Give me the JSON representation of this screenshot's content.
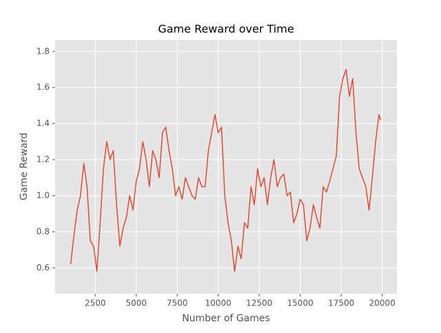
{
  "chart_data": {
    "type": "line",
    "title": "Game Reward over Time",
    "xlabel": "Number of Games",
    "ylabel": "Game Reward",
    "x": [
      1000,
      1200,
      1400,
      1600,
      1800,
      2000,
      2200,
      2400,
      2600,
      2800,
      3000,
      3200,
      3400,
      3600,
      3800,
      4000,
      4200,
      4400,
      4600,
      4800,
      5000,
      5200,
      5400,
      5600,
      5800,
      6000,
      6200,
      6400,
      6600,
      6800,
      7000,
      7200,
      7400,
      7600,
      7800,
      8000,
      8200,
      8400,
      8600,
      8800,
      9000,
      9200,
      9400,
      9600,
      9800,
      10000,
      10200,
      10400,
      10600,
      10800,
      11000,
      11200,
      11400,
      11600,
      11800,
      12000,
      12200,
      12400,
      12600,
      12800,
      13000,
      13200,
      13400,
      13600,
      13800,
      14000,
      14200,
      14400,
      14600,
      14800,
      15000,
      15200,
      15400,
      15600,
      15800,
      16000,
      16200,
      16400,
      16600,
      16800,
      17000,
      17200,
      17400,
      17600,
      17800,
      18000,
      18200,
      18400,
      18600,
      18800,
      19000,
      19200,
      19400,
      19600,
      19800,
      19900
    ],
    "series": [
      {
        "name": "Game Reward",
        "color": "#E24A33",
        "values": [
          0.62,
          0.78,
          0.92,
          1.0,
          1.18,
          1.05,
          0.75,
          0.72,
          0.58,
          0.85,
          1.15,
          1.3,
          1.2,
          1.25,
          0.95,
          0.72,
          0.82,
          0.88,
          1.0,
          0.92,
          1.08,
          1.15,
          1.3,
          1.2,
          1.05,
          1.25,
          1.2,
          1.1,
          1.35,
          1.38,
          1.25,
          1.15,
          1.0,
          1.05,
          0.98,
          1.1,
          1.05,
          1.0,
          0.98,
          1.1,
          1.05,
          1.05,
          1.25,
          1.35,
          1.45,
          1.35,
          1.38,
          1.0,
          0.85,
          0.75,
          0.58,
          0.72,
          0.65,
          0.85,
          0.82,
          1.05,
          0.95,
          1.15,
          1.05,
          1.1,
          0.95,
          1.1,
          1.2,
          1.05,
          1.1,
          1.12,
          1.0,
          1.02,
          0.85,
          0.9,
          0.98,
          0.95,
          0.75,
          0.82,
          0.95,
          0.88,
          0.82,
          1.05,
          1.02,
          1.08,
          1.15,
          1.22,
          1.55,
          1.65,
          1.7,
          1.55,
          1.65,
          1.35,
          1.15,
          1.1,
          1.05,
          0.92,
          1.1,
          1.3,
          1.45,
          1.42
        ]
      }
    ],
    "xlim": [
      53,
      20897
    ],
    "ylim": [
      0.456,
      1.864
    ],
    "xticks": [
      2500,
      5000,
      7500,
      10000,
      12500,
      15000,
      17500,
      20000
    ],
    "yticks": [
      0.6,
      0.8,
      {
        "value": 1,
        "label": "1.0"
      },
      1.2,
      1.4,
      1.6,
      1.8
    ],
    "grid": true,
    "background": "#E5E5E5"
  }
}
